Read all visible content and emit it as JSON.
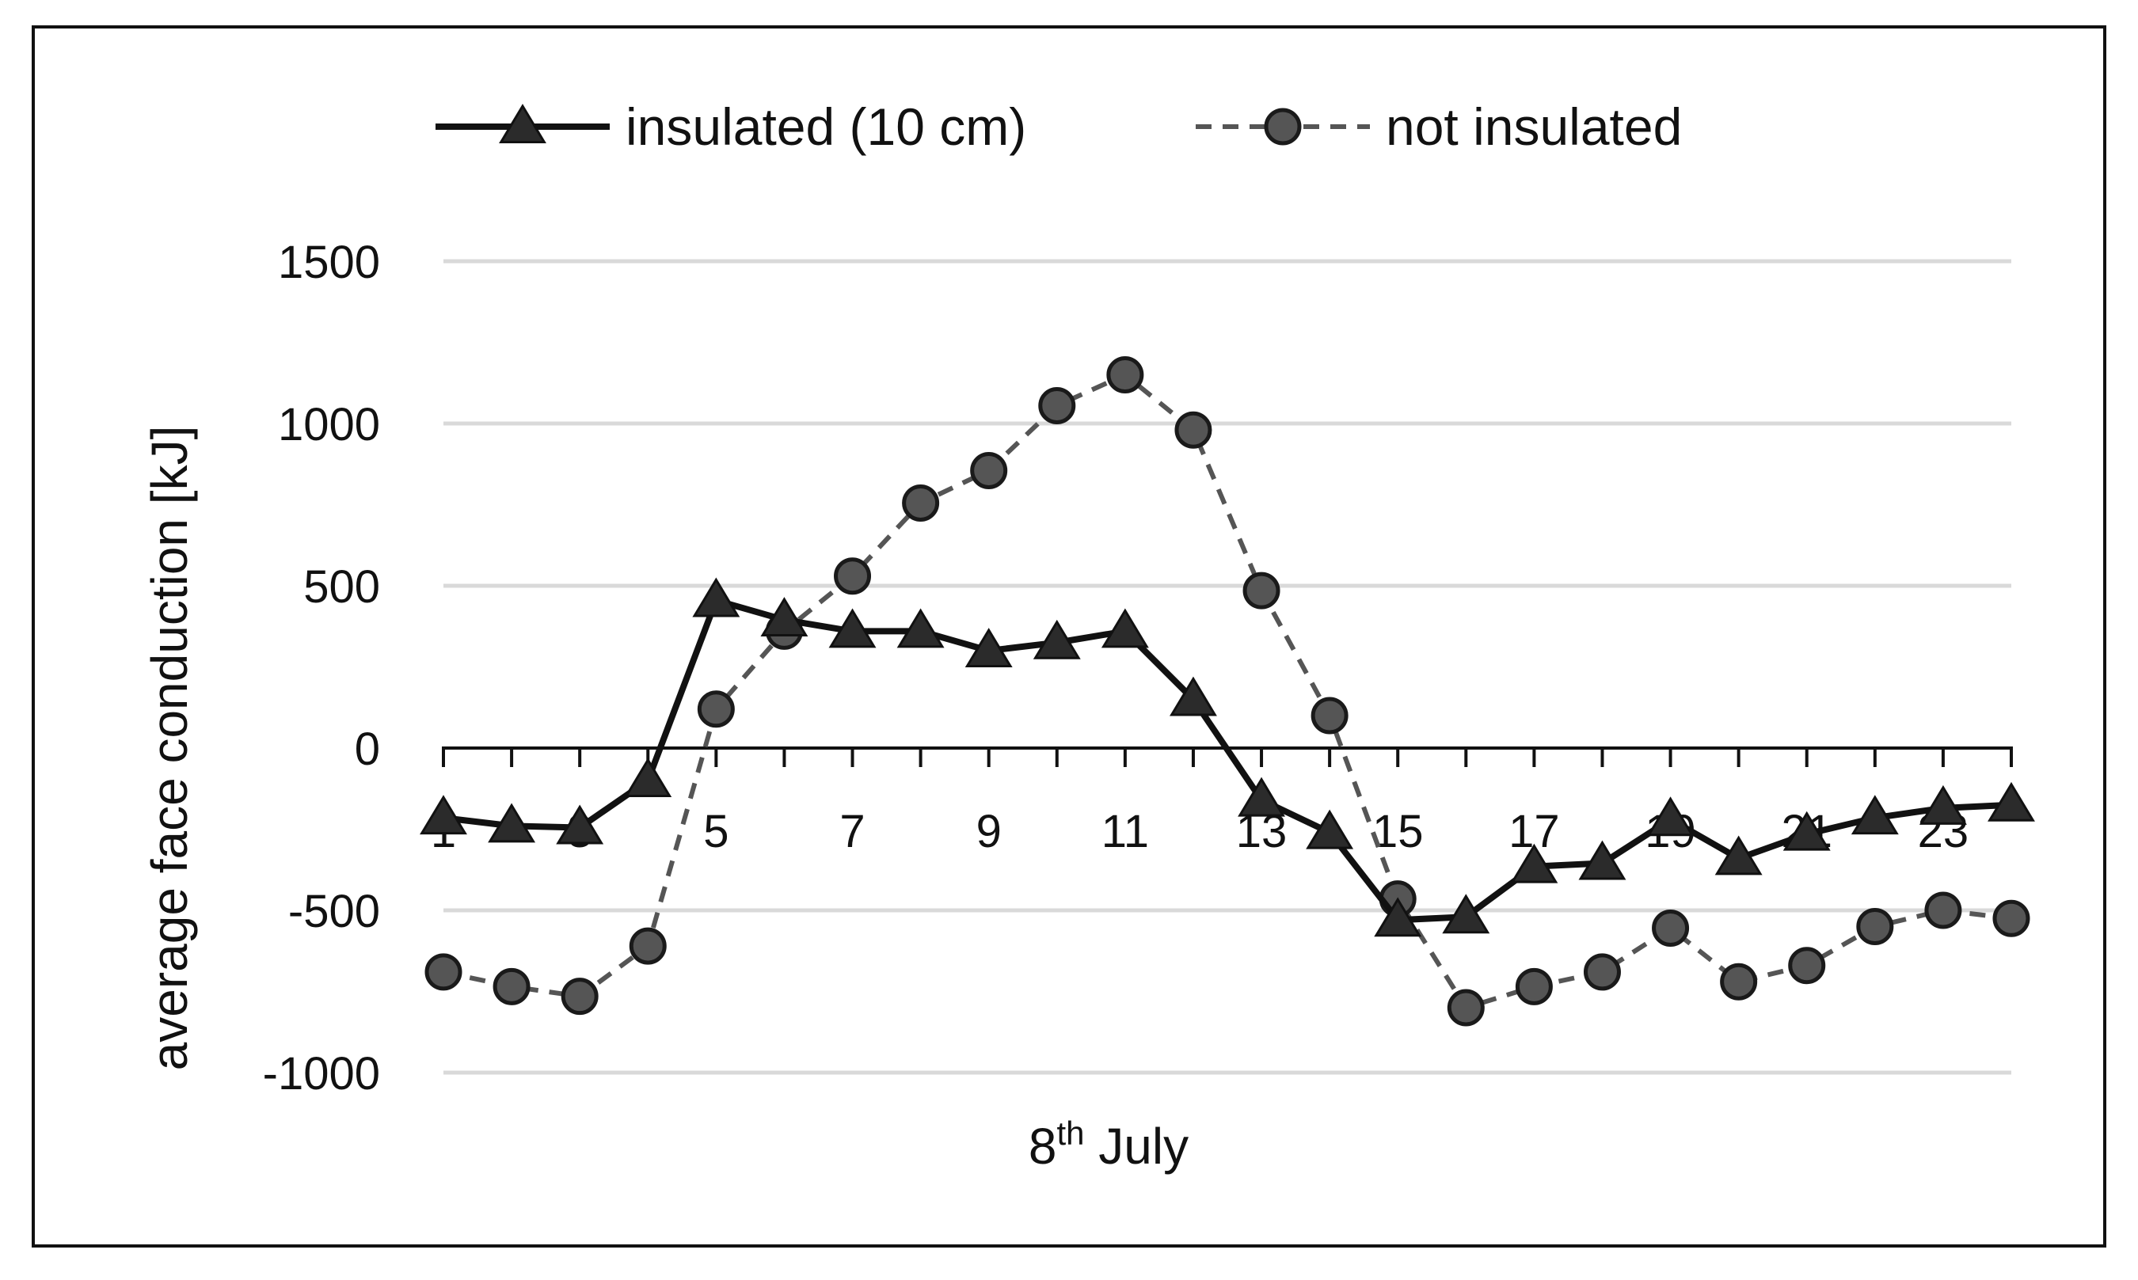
{
  "chart_data": {
    "type": "line",
    "x": [
      1,
      2,
      3,
      4,
      5,
      6,
      7,
      8,
      9,
      10,
      11,
      12,
      13,
      14,
      15,
      16,
      17,
      18,
      19,
      20,
      21,
      22,
      23,
      24
    ],
    "x_tick_labels": [
      "1",
      "3",
      "5",
      "7",
      "9",
      "11",
      "13",
      "15",
      "17",
      "19",
      "21",
      "23"
    ],
    "x_tick_values": [
      1,
      3,
      5,
      7,
      9,
      11,
      13,
      15,
      17,
      19,
      21,
      23
    ],
    "ylabel": "average face conduction  [kJ]",
    "xlabel": {
      "main": "8",
      "sup": "th",
      "rest": " July"
    },
    "ylim": [
      -1000,
      1500
    ],
    "y_ticks": [
      1500,
      1000,
      500,
      0,
      -500,
      -1000
    ],
    "y_tick_labels": [
      "1500",
      "1000",
      "500",
      "0",
      "-500",
      "-1000"
    ],
    "grid": true,
    "legend_position": "top",
    "series": [
      {
        "name": "insulated (10 cm)",
        "marker": "triangle",
        "line_style": "solid",
        "color": "#111111",
        "values": [
          -215,
          -240,
          -245,
          -100,
          455,
          395,
          360,
          360,
          300,
          325,
          360,
          150,
          -160,
          -260,
          -530,
          -520,
          -365,
          -355,
          -220,
          -340,
          -265,
          -215,
          -185,
          -175
        ]
      },
      {
        "name": "not insulated",
        "marker": "circle",
        "line_style": "dashed",
        "color": "#555555",
        "values": [
          -690,
          -735,
          -765,
          -610,
          120,
          360,
          530,
          755,
          855,
          1055,
          1150,
          980,
          485,
          100,
          -465,
          -800,
          -735,
          -690,
          -555,
          -720,
          -670,
          -550,
          -500,
          -525
        ]
      }
    ]
  }
}
